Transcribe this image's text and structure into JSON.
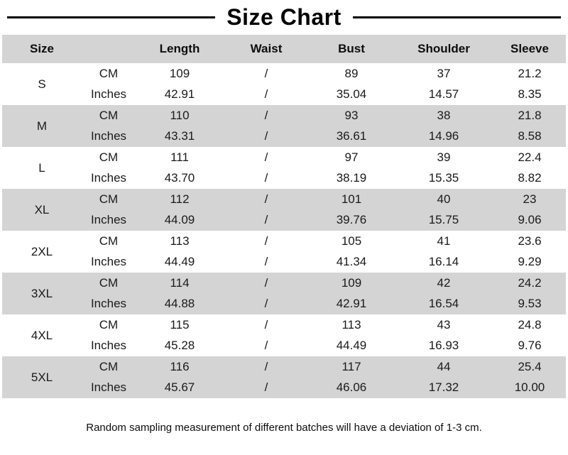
{
  "title": "Size Chart",
  "note": "Random sampling measurement of different batches will have a deviation of 1-3 cm.",
  "colors": {
    "band_gray": "#d4d4d4",
    "background": "#ffffff",
    "text": "#111111",
    "title_rule": "#000000"
  },
  "chart_data": {
    "type": "table",
    "title": "Size Chart",
    "columns": [
      "Size",
      "",
      "Length",
      "Waist",
      "Bust",
      "Shoulder",
      "Sleeve"
    ],
    "unit_labels": [
      "CM",
      "Inches"
    ],
    "rows": [
      {
        "size": "S",
        "cm": [
          "109",
          "/",
          "89",
          "37",
          "21.2"
        ],
        "inches": [
          "42.91",
          "/",
          "35.04",
          "14.57",
          "8.35"
        ]
      },
      {
        "size": "M",
        "cm": [
          "110",
          "/",
          "93",
          "38",
          "21.8"
        ],
        "inches": [
          "43.31",
          "/",
          "36.61",
          "14.96",
          "8.58"
        ]
      },
      {
        "size": "L",
        "cm": [
          "111",
          "/",
          "97",
          "39",
          "22.4"
        ],
        "inches": [
          "43.70",
          "/",
          "38.19",
          "15.35",
          "8.82"
        ]
      },
      {
        "size": "XL",
        "cm": [
          "112",
          "/",
          "101",
          "40",
          "23"
        ],
        "inches": [
          "44.09",
          "/",
          "39.76",
          "15.75",
          "9.06"
        ]
      },
      {
        "size": "2XL",
        "cm": [
          "113",
          "/",
          "105",
          "41",
          "23.6"
        ],
        "inches": [
          "44.49",
          "/",
          "41.34",
          "16.14",
          "9.29"
        ]
      },
      {
        "size": "3XL",
        "cm": [
          "114",
          "/",
          "109",
          "42",
          "24.2"
        ],
        "inches": [
          "44.88",
          "/",
          "42.91",
          "16.54",
          "9.53"
        ]
      },
      {
        "size": "4XL",
        "cm": [
          "115",
          "/",
          "113",
          "43",
          "24.8"
        ],
        "inches": [
          "45.28",
          "/",
          "44.49",
          "16.93",
          "9.76"
        ]
      },
      {
        "size": "5XL",
        "cm": [
          "116",
          "/",
          "117",
          "44",
          "25.4"
        ],
        "inches": [
          "45.67",
          "/",
          "46.06",
          "17.32",
          "10.00"
        ]
      }
    ],
    "layout": {
      "band_alternation": "white/gray per size block",
      "grid": false
    }
  }
}
